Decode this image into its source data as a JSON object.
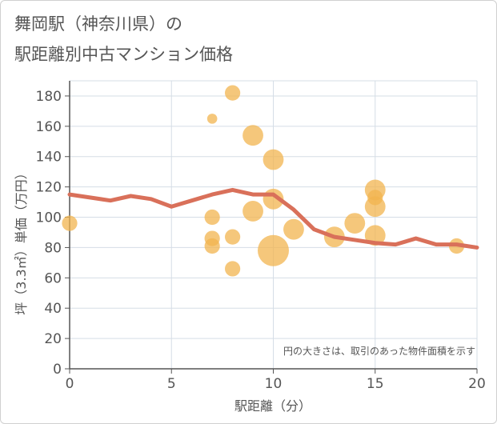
{
  "chart_data": {
    "type": "scatter",
    "title": [
      "舞岡駅（神奈川県）の",
      "駅距離別中古マンション価格"
    ],
    "xlabel": "駅距離（分）",
    "ylabel": "坪（3.3㎡）単価（万円）",
    "xlim": [
      0,
      20
    ],
    "ylim": [
      0,
      190
    ],
    "xticks": [
      0,
      5,
      10,
      15,
      20
    ],
    "yticks": [
      0,
      20,
      40,
      60,
      80,
      100,
      120,
      140,
      160,
      180
    ],
    "grid": true,
    "note": "円の大きさは、取引のあった物件面積を示す",
    "colors": {
      "bubble": "#f2b44f",
      "line": "#d9705a",
      "grid": "#d5dde6",
      "axis": "#555555"
    },
    "bubbles": [
      {
        "x": 0,
        "y": 96,
        "size": 2
      },
      {
        "x": 7,
        "y": 165,
        "size": 1
      },
      {
        "x": 7,
        "y": 100,
        "size": 2
      },
      {
        "x": 7,
        "y": 86,
        "size": 2
      },
      {
        "x": 7,
        "y": 81,
        "size": 2
      },
      {
        "x": 8,
        "y": 182,
        "size": 2
      },
      {
        "x": 8,
        "y": 87,
        "size": 2
      },
      {
        "x": 8,
        "y": 66,
        "size": 2
      },
      {
        "x": 9,
        "y": 154,
        "size": 3
      },
      {
        "x": 9,
        "y": 104,
        "size": 3
      },
      {
        "x": 10,
        "y": 138,
        "size": 3
      },
      {
        "x": 10,
        "y": 112,
        "size": 3
      },
      {
        "x": 10,
        "y": 78,
        "size": 5
      },
      {
        "x": 11,
        "y": 92,
        "size": 3
      },
      {
        "x": 13,
        "y": 87,
        "size": 3
      },
      {
        "x": 14,
        "y": 96,
        "size": 3
      },
      {
        "x": 15,
        "y": 118,
        "size": 3
      },
      {
        "x": 15,
        "y": 113,
        "size": 2
      },
      {
        "x": 15,
        "y": 107,
        "size": 3
      },
      {
        "x": 15,
        "y": 88,
        "size": 3
      },
      {
        "x": 19,
        "y": 81,
        "size": 2
      }
    ],
    "trend": {
      "x": [
        0,
        1,
        2,
        3,
        4,
        5,
        6,
        7,
        8,
        9,
        10,
        11,
        12,
        13,
        14,
        15,
        16,
        17,
        18,
        19,
        20
      ],
      "y": [
        115,
        113,
        111,
        114,
        112,
        107,
        111,
        115,
        118,
        115,
        115,
        105,
        92,
        87,
        85,
        83,
        82,
        86,
        82,
        82,
        80
      ]
    }
  }
}
